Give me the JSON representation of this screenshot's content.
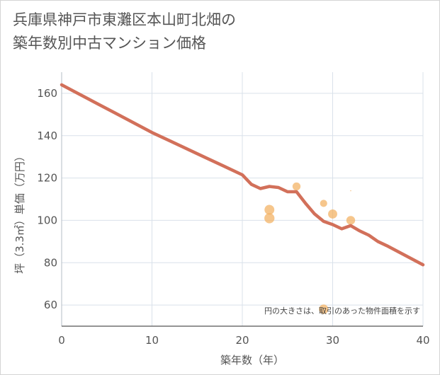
{
  "chart_data": {
    "type": "scatter",
    "title_lines": [
      "兵庫県神戸市東灘区本山町北畑の",
      "築年数別中古マンション価格"
    ],
    "xlabel": "築年数（年）",
    "ylabel": "坪（3.3㎡）単価（万円）",
    "xlim": [
      0,
      40
    ],
    "ylim": [
      50,
      170
    ],
    "x_ticks": [
      0,
      10,
      20,
      30,
      40
    ],
    "y_ticks": [
      60,
      80,
      100,
      120,
      140,
      160
    ],
    "grid": true,
    "note": "円の大きさは、取引のあった物件面積を示す",
    "series": [
      {
        "name": "trend",
        "type": "line",
        "color": "#d2705a",
        "x": [
          0,
          2,
          4,
          6,
          8,
          10,
          12,
          14,
          16,
          18,
          20,
          21,
          22,
          23,
          24,
          25,
          26,
          27,
          28,
          29,
          30,
          31,
          32,
          33,
          34,
          35,
          36,
          38,
          40
        ],
        "y": [
          164,
          159.5,
          155,
          150.5,
          146,
          141.5,
          137.5,
          133.5,
          129.5,
          125.5,
          121.5,
          117,
          115,
          116,
          115.5,
          113.5,
          113.5,
          108,
          103,
          99.5,
          98,
          96,
          97.5,
          95,
          93,
          90,
          88,
          83.5,
          79
        ]
      },
      {
        "name": "transactions",
        "type": "bubble",
        "color": "#f2b060",
        "points": [
          {
            "x": 23,
            "y": 105,
            "size": 3
          },
          {
            "x": 23,
            "y": 101,
            "size": 3.2
          },
          {
            "x": 26,
            "y": 116,
            "size": 2
          },
          {
            "x": 29,
            "y": 108,
            "size": 1.6
          },
          {
            "x": 30,
            "y": 103,
            "size": 2.6
          },
          {
            "x": 32,
            "y": 100,
            "size": 2.4
          },
          {
            "x": 29,
            "y": 58,
            "size": 2.8
          },
          {
            "x": 32,
            "y": 114,
            "size": 0.2
          }
        ]
      }
    ]
  }
}
